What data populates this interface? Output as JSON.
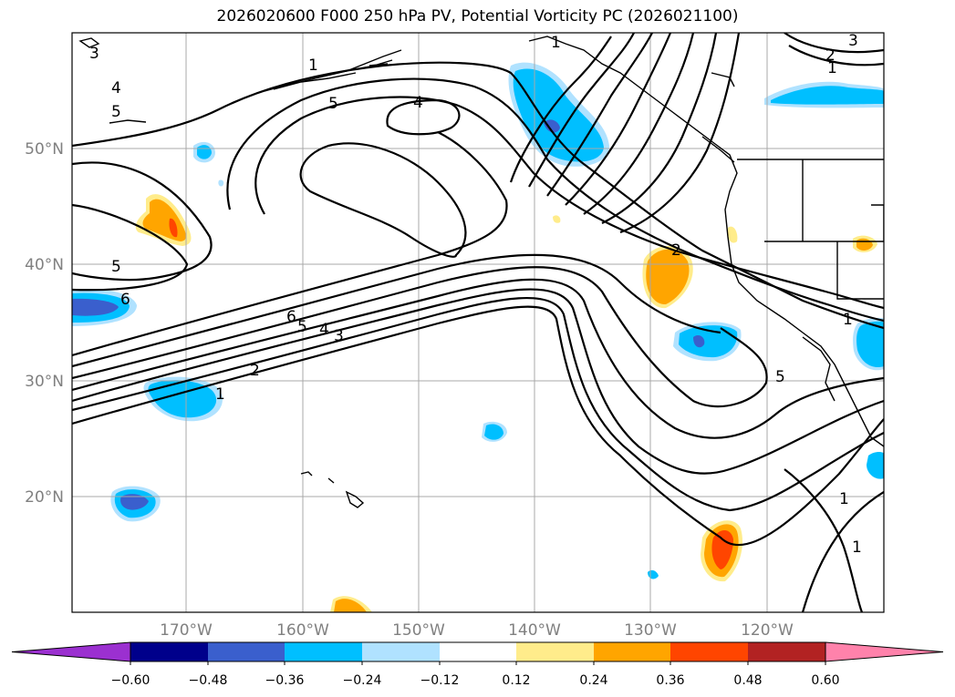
{
  "title": "2026020600 F000 250 hPa PV, Potential Vorticity PC (2026021100)",
  "lat_labels": [
    "50°N",
    "40°N",
    "30°N",
    "20°N"
  ],
  "lon_labels": [
    "170°W",
    "160°W",
    "150°W",
    "140°W",
    "130°W",
    "120°W"
  ],
  "contour_labels": [
    "1",
    "2",
    "3",
    "4",
    "5",
    "6"
  ],
  "colorbar": {
    "ticks": [
      "−0.60",
      "−0.48",
      "−0.36",
      "−0.24",
      "−0.12",
      "0.12",
      "0.24",
      "0.36",
      "0.48",
      "0.60"
    ],
    "colors": [
      "#9b30d0",
      "#00008b",
      "#3a5fcd",
      "#00bfff",
      "#b0e2ff",
      "#ffffff",
      "#ffec8b",
      "#ffa500",
      "#ff4500",
      "#b22222",
      "#ff82ab"
    ]
  },
  "colors": {
    "neg_strong": "#3a5fcd",
    "neg_mid": "#00bfff",
    "neg_weak": "#b0e2ff",
    "pos_weak": "#ffec8b",
    "pos_mid": "#ffa500",
    "pos_strong": "#ff4500"
  }
}
